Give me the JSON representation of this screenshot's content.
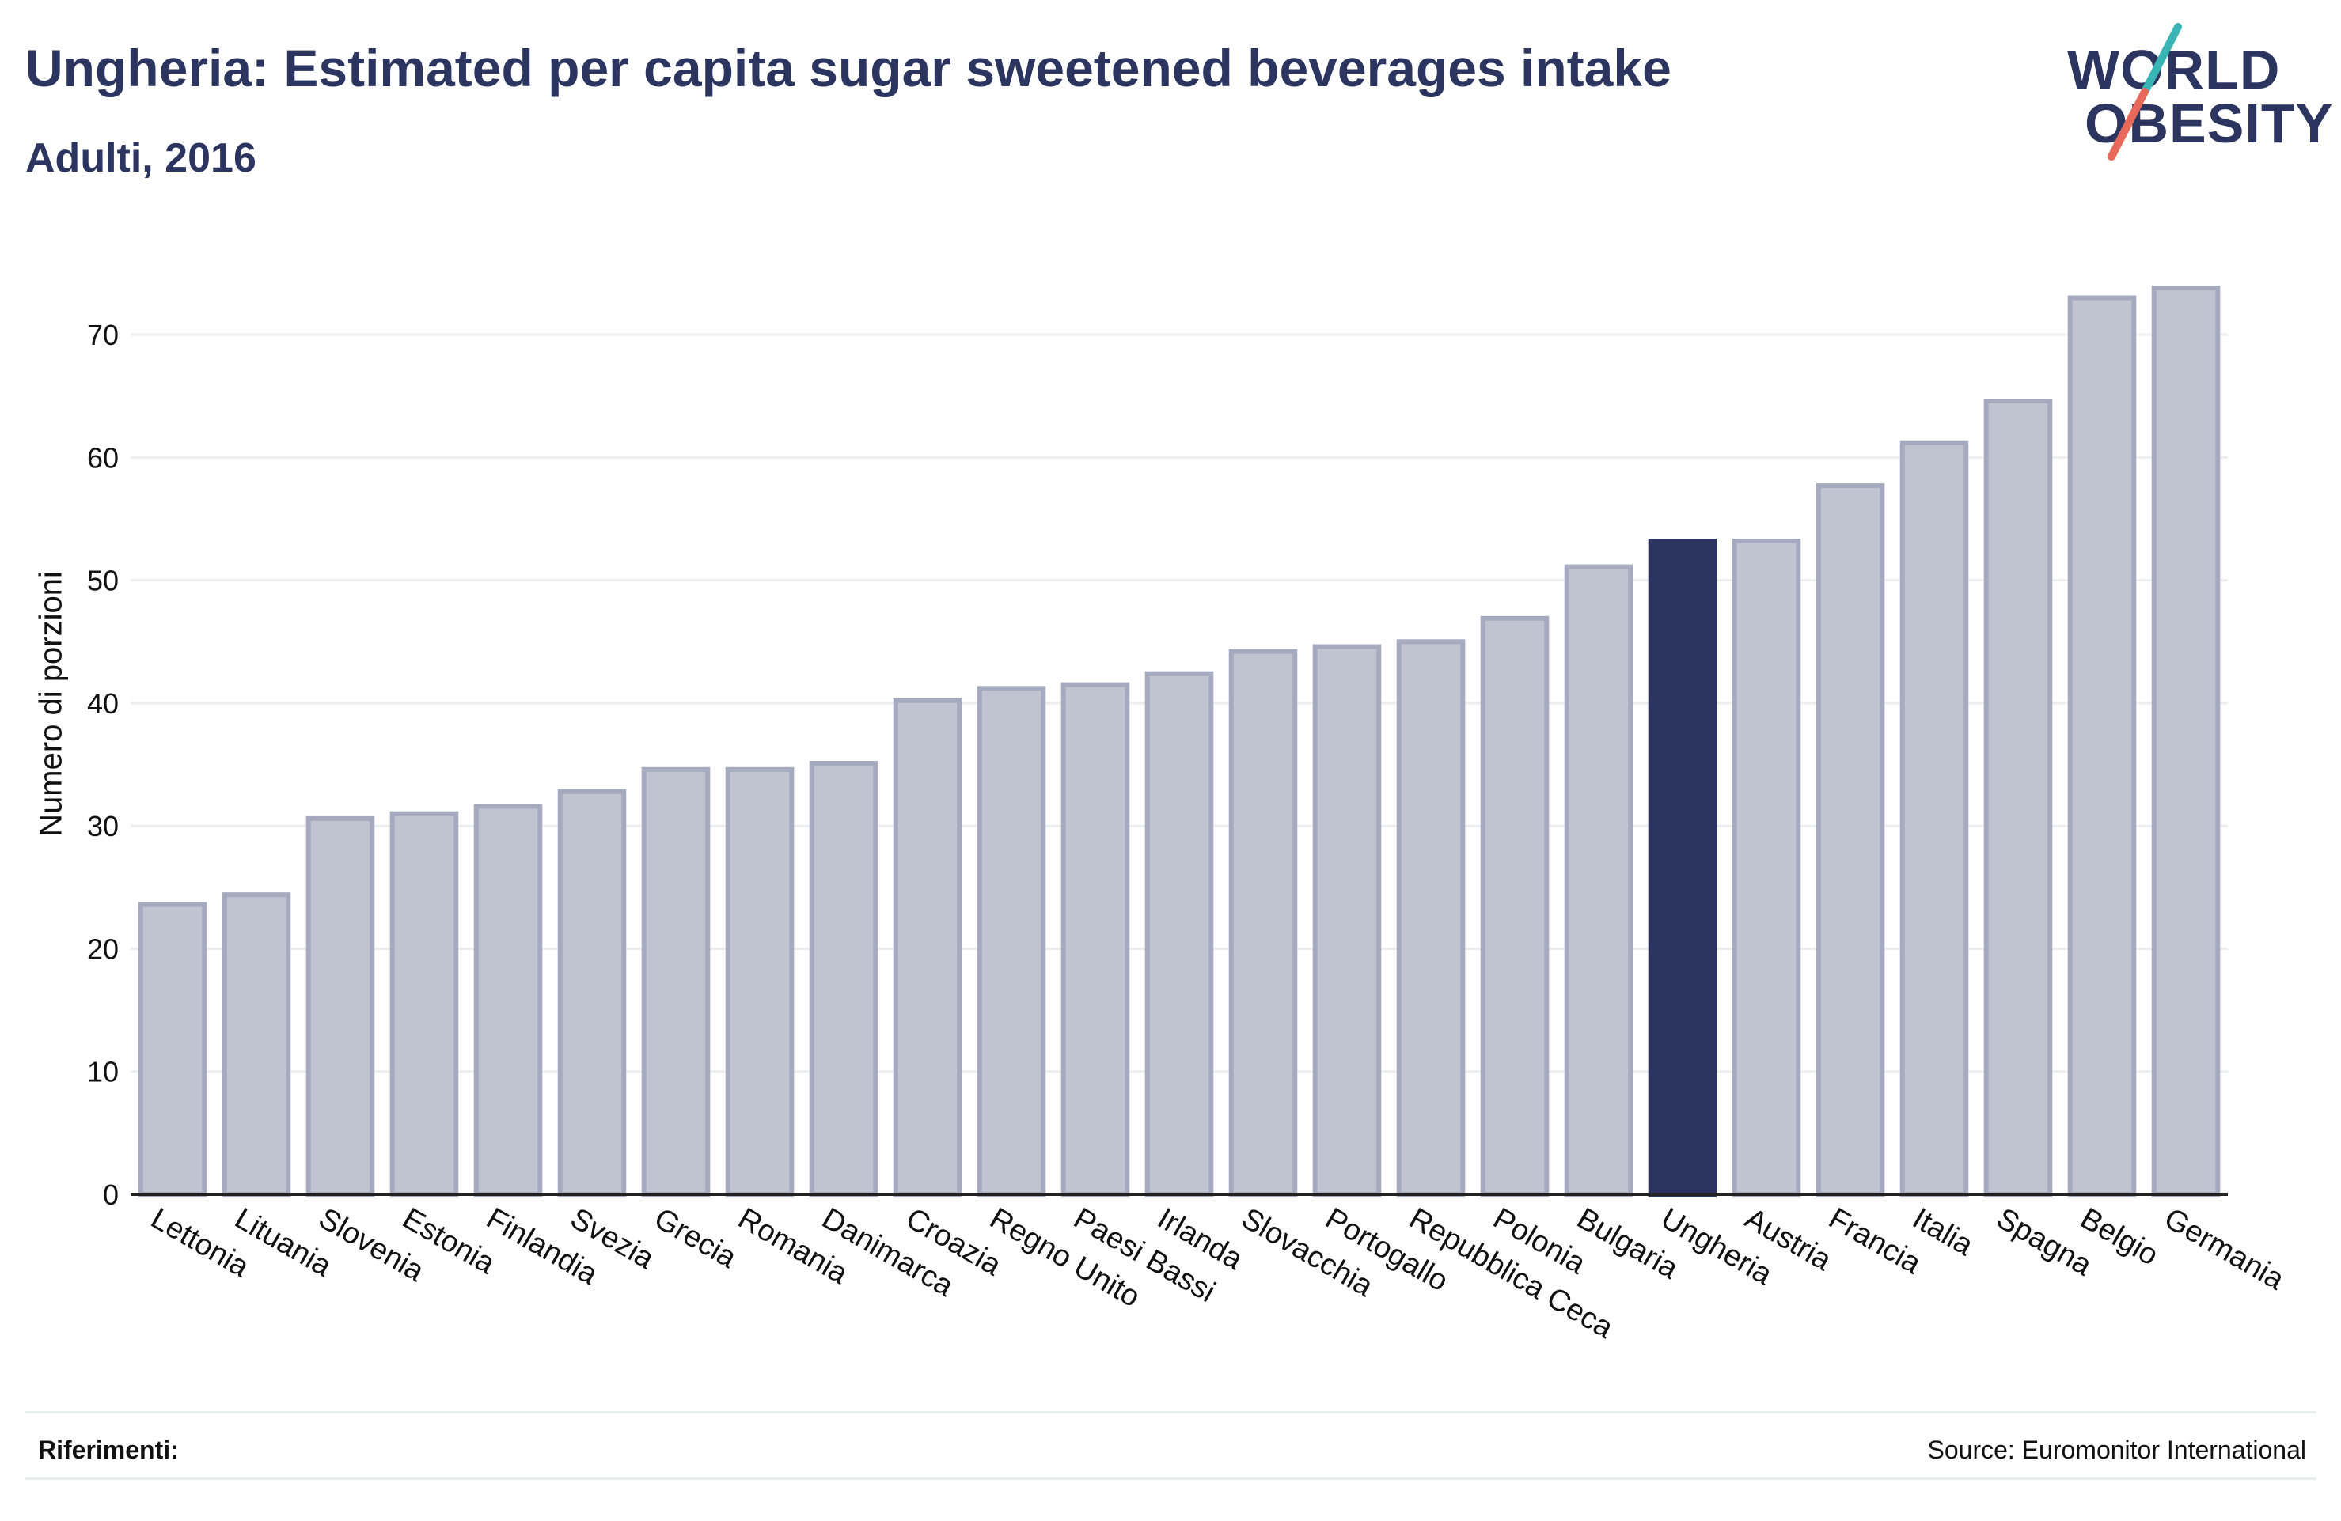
{
  "header": {
    "title": "Ungheria: Estimated per capita sugar sweetened beverages intake",
    "subtitle": "Adulti, 2016"
  },
  "logo": {
    "line1": "WORLD",
    "line2": "OBESITY",
    "colors": {
      "text": "#2b355f",
      "slash_teal": "#3ab5b5",
      "slash_coral": "#e8685a"
    }
  },
  "colors": {
    "bar_fill": "#c0c3d0",
    "bar_stroke": "#a5aabe",
    "highlight_fill": "#2b355f",
    "grid": "#eceef1",
    "axis": "#222222",
    "text": "#111111"
  },
  "chart_data": {
    "type": "bar",
    "title": "Ungheria: Estimated per capita sugar sweetened beverages intake",
    "subtitle": "Adulti, 2016",
    "xlabel": "",
    "ylabel": "Numero di porzioni",
    "ylim": [
      0,
      76
    ],
    "yticks": [
      0,
      10,
      20,
      30,
      40,
      50,
      60,
      70
    ],
    "grid": true,
    "highlight": "Ungheria",
    "categories": [
      "Lettonia",
      "Lituania",
      "Slovenia",
      "Estonia",
      "Finlandia",
      "Svezia",
      "Grecia",
      "Romania",
      "Danimarca",
      "Croazia",
      "Regno Unito",
      "Paesi Bassi",
      "Irlanda",
      "Slovacchia",
      "Portogallo",
      "Repubblica Ceca",
      "Polonia",
      "Bulgaria",
      "Ungheria",
      "Austria",
      "Francia",
      "Italia",
      "Spagna",
      "Belgio",
      "Germania"
    ],
    "values": [
      23.6,
      24.4,
      30.6,
      31.0,
      31.6,
      32.8,
      34.6,
      34.6,
      35.1,
      40.2,
      41.2,
      41.5,
      42.4,
      44.2,
      44.6,
      45.0,
      46.9,
      51.1,
      53.2,
      53.2,
      57.7,
      61.2,
      64.6,
      73.0,
      73.8
    ]
  },
  "footer": {
    "left": "Riferimenti:",
    "right": "Source: Euromonitor International"
  }
}
